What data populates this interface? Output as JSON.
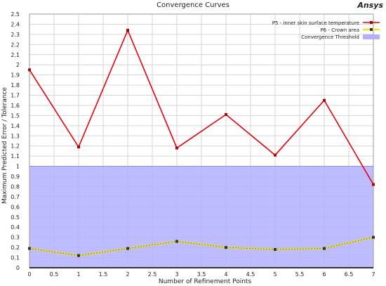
{
  "brand": {
    "logo_text": "Ansys"
  },
  "chart_data": {
    "type": "line",
    "title": "Convergence Curves",
    "xlabel": "Number of Refinement Points",
    "ylabel": "Maximum Predicted Error / Tolerance",
    "xlim": [
      0,
      7
    ],
    "ylim": [
      0,
      2.5
    ],
    "x_ticks": [
      0,
      0.5,
      1,
      1.5,
      2,
      2.5,
      3,
      3.5,
      4,
      4.5,
      5,
      5.5,
      6,
      6.5,
      7
    ],
    "y_ticks": [
      0,
      0.1,
      0.2,
      0.3,
      0.4,
      0.5,
      0.6,
      0.7,
      0.8,
      0.9,
      1,
      1.1,
      1.2,
      1.3,
      1.4,
      1.5,
      1.6,
      1.7,
      1.8,
      1.9,
      2,
      2.1,
      2.2,
      2.3,
      2.4,
      2.5
    ],
    "grid": true,
    "legend_position": "top-right",
    "series": [
      {
        "name": "P5 - inner skin surface temperature",
        "color": "#e8000b",
        "x": [
          0,
          1,
          2,
          3,
          4,
          5,
          6,
          7
        ],
        "y": [
          1.95,
          1.19,
          2.34,
          1.18,
          1.51,
          1.11,
          1.65,
          0.82
        ]
      },
      {
        "name": "P6 - Crown area",
        "color": "#f2e600",
        "x": [
          0,
          1,
          2,
          3,
          4,
          5,
          6,
          7
        ],
        "y": [
          0.19,
          0.12,
          0.19,
          0.26,
          0.2,
          0.18,
          0.19,
          0.3
        ]
      }
    ],
    "threshold": {
      "name": "Convergence Threshold",
      "value": 1,
      "color": "#b0b0ff"
    }
  }
}
